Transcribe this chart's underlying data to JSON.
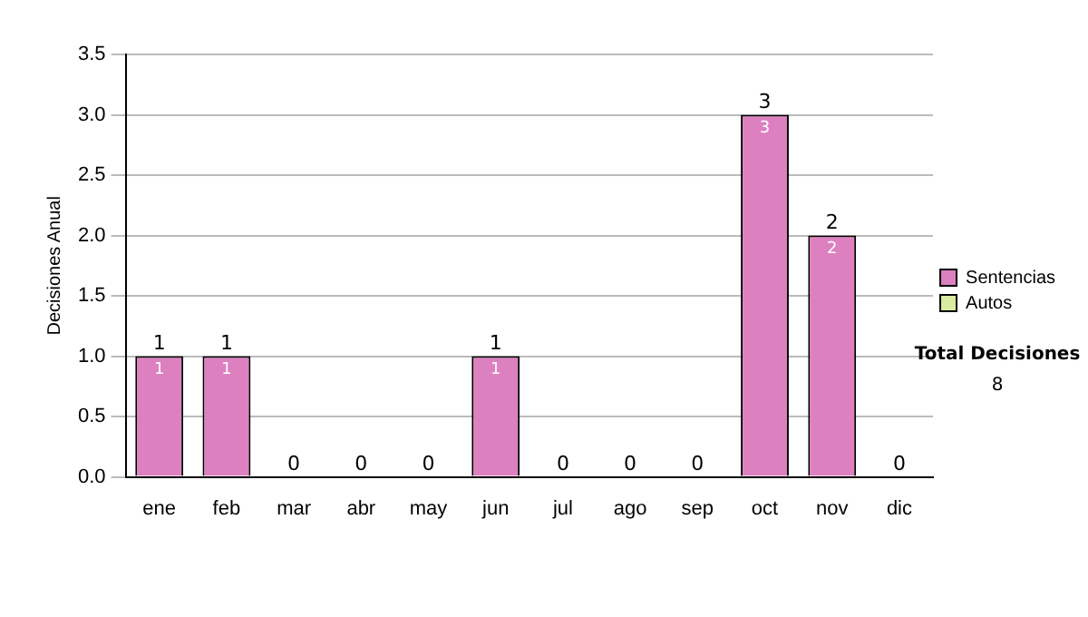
{
  "chart_data": {
    "type": "bar",
    "ylabel": "Decisiones Anual",
    "stacked": true,
    "categories": [
      "ene",
      "feb",
      "mar",
      "abr",
      "may",
      "jun",
      "jul",
      "ago",
      "sep",
      "oct",
      "nov",
      "dic"
    ],
    "series": [
      {
        "name": "Sentencias",
        "color": "#dd80c0",
        "values": [
          1,
          1,
          0,
          0,
          0,
          1,
          0,
          0,
          0,
          3,
          2,
          0
        ],
        "value_labels": [
          "1",
          "1",
          null,
          null,
          null,
          "1",
          null,
          null,
          null,
          "3",
          "2",
          null
        ]
      },
      {
        "name": "Autos",
        "color": "#d8eba0",
        "values": [
          0,
          0,
          0,
          0,
          0,
          0,
          0,
          0,
          0,
          0,
          0,
          0
        ]
      }
    ],
    "totals": [
      "1",
      "1",
      "0",
      "0",
      "0",
      "1",
      "0",
      "0",
      "0",
      "3",
      "2",
      "0"
    ],
    "ylim": [
      0,
      3.5
    ],
    "yticks": [
      {
        "value": 0,
        "label": "0.0"
      },
      {
        "value": 0.5,
        "label": "0.5"
      },
      {
        "value": 1,
        "label": "1.0"
      },
      {
        "value": 1.5,
        "label": "1.5"
      },
      {
        "value": 2,
        "label": "2.0"
      },
      {
        "value": 2.5,
        "label": "2.5"
      },
      {
        "value": 3,
        "label": "3.0"
      },
      {
        "value": 3.5,
        "label": "3.5"
      }
    ],
    "grid": "y",
    "legend": "right",
    "annotations": [
      "Total Decisiones",
      "8"
    ]
  }
}
